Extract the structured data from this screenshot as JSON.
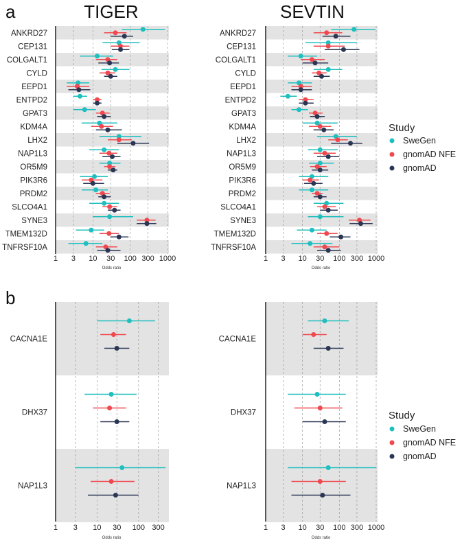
{
  "chart_data": [
    {
      "type": "forest",
      "panel_label": "a",
      "title": "TIGER",
      "xlabel": "Odds ratio",
      "xscale": "log",
      "xticks": [
        1,
        3,
        10,
        30,
        100,
        300,
        1000
      ],
      "xlim": [
        1,
        1000
      ],
      "categories": [
        "ANKRD27",
        "CEP131",
        "COLGALT1",
        "CYLD",
        "EEPD1",
        "ENTPD2",
        "GPAT3",
        "KDM4A",
        "LHX2",
        "NAP1L3",
        "OR5M9",
        "PIK3R6",
        "PRDM2",
        "SLCO4A1",
        "SYNE3",
        "TMEM132D",
        "TNFRSF10A"
      ],
      "series": [
        {
          "name": "SweGen",
          "color": "#1fbfbf",
          "values": [
            220,
            50,
            13,
            40,
            4,
            4.5,
            6,
            15,
            50,
            20,
            28,
            11,
            12,
            20,
            28,
            9,
            6.5
          ],
          "lower": [
            60,
            18,
            4.5,
            17,
            2,
            3,
            3,
            5,
            15,
            8,
            15,
            4.5,
            5,
            8,
            10,
            3.5,
            2.2
          ],
          "upper": [
            850,
            180,
            35,
            95,
            8,
            7,
            12,
            45,
            200,
            50,
            55,
            25,
            25,
            50,
            120,
            20,
            18
          ]
        },
        {
          "name": "gnomAD NFE",
          "color": "#f0484e",
          "values": [
            40,
            55,
            25,
            25,
            3.8,
            13,
            18,
            17,
            50,
            27,
            28,
            9,
            18,
            28,
            280,
            27,
            22
          ],
          "lower": [
            20,
            30,
            12,
            15,
            2,
            10,
            12,
            9,
            25,
            15,
            20,
            5,
            12,
            18,
            150,
            15,
            12
          ],
          "upper": [
            80,
            95,
            45,
            40,
            8,
            17,
            28,
            35,
            110,
            45,
            40,
            18,
            28,
            45,
            480,
            50,
            45
          ]
        },
        {
          "name": "gnomAD",
          "color": "#2b3654",
          "values": [
            70,
            55,
            28,
            30,
            4.2,
            13,
            20,
            25,
            120,
            33,
            35,
            10,
            20,
            38,
            280,
            50,
            25
          ],
          "lower": [
            30,
            32,
            14,
            20,
            2.2,
            10,
            13,
            12,
            45,
            18,
            25,
            5.5,
            14,
            25,
            150,
            30,
            13
          ],
          "upper": [
            120,
            95,
            50,
            45,
            8.5,
            17,
            30,
            60,
            320,
            55,
            45,
            20,
            30,
            55,
            500,
            90,
            55
          ]
        }
      ]
    },
    {
      "type": "forest",
      "panel_label": "",
      "title": "SEVTIN",
      "xlabel": "Odds ratio",
      "xscale": "log",
      "xticks": [
        1,
        3,
        10,
        30,
        100,
        300,
        1000
      ],
      "xlim": [
        1,
        1000
      ],
      "categories": [
        "ANKRD27",
        "CEP131",
        "COLGALT1",
        "CYLD",
        "EEPD1",
        "ENTPD2",
        "GPAT3",
        "KDM4A",
        "LHX2",
        "NAP1L3",
        "OR5M9",
        "PIK3R6",
        "PRDM2",
        "SLCO4A1",
        "SYNE3",
        "TMEM132D",
        "TNFRSF10A"
      ],
      "series": [
        {
          "name": "SweGen",
          "color": "#1fbfbf",
          "values": [
            250,
            50,
            9,
            50,
            8,
            4,
            8,
            25,
            80,
            30,
            30,
            18,
            18,
            45,
            30,
            18,
            16
          ],
          "lower": [
            60,
            12,
            4,
            20,
            4,
            2.5,
            5,
            10,
            25,
            14,
            15,
            8,
            8,
            20,
            14,
            7,
            5
          ],
          "upper": [
            950,
            300,
            25,
            120,
            18,
            7,
            14,
            90,
            300,
            90,
            70,
            50,
            50,
            130,
            130,
            45,
            65
          ]
        },
        {
          "name": "gnomAD NFE",
          "color": "#f0484e",
          "values": [
            45,
            50,
            18,
            28,
            9,
            12,
            22,
            30,
            90,
            40,
            25,
            16,
            25,
            40,
            350,
            45,
            40
          ],
          "lower": [
            20,
            20,
            9,
            18,
            5,
            8,
            15,
            15,
            50,
            20,
            16,
            10,
            18,
            25,
            180,
            25,
            20
          ],
          "upper": [
            120,
            140,
            40,
            45,
            18,
            20,
            35,
            60,
            170,
            80,
            45,
            28,
            35,
            80,
            700,
            90,
            100
          ]
        },
        {
          "name": "gnomAD",
          "color": "#2b3654",
          "values": [
            80,
            130,
            22,
            33,
            9,
            12,
            25,
            38,
            200,
            50,
            30,
            20,
            30,
            50,
            380,
            110,
            50
          ],
          "lower": [
            35,
            40,
            10,
            20,
            5,
            8,
            16,
            20,
            60,
            25,
            18,
            11,
            20,
            30,
            190,
            55,
            25
          ],
          "upper": [
            200,
            350,
            50,
            55,
            18,
            20,
            40,
            70,
            420,
            100,
            50,
            35,
            45,
            90,
            800,
            200,
            110
          ]
        }
      ]
    },
    {
      "type": "forest",
      "panel_label": "b",
      "title": "",
      "xlabel": "Odds ratio",
      "xscale": "log",
      "xticks": [
        1,
        3,
        10,
        30,
        100,
        300
      ],
      "xlim": [
        1,
        500
      ],
      "categories": [
        "CACNA1E",
        "DHX37",
        "NAP1L3"
      ],
      "series": [
        {
          "name": "SweGen",
          "color": "#1fbfbf",
          "values": [
            60,
            22,
            40
          ],
          "lower": [
            10,
            5,
            3
          ],
          "upper": [
            250,
            90,
            450
          ]
        },
        {
          "name": "gnomAD NFE",
          "color": "#f0484e",
          "values": [
            25,
            20,
            22
          ],
          "lower": [
            12,
            8,
            7
          ],
          "upper": [
            50,
            50,
            80
          ]
        },
        {
          "name": "gnomAD",
          "color": "#2b3654",
          "values": [
            30,
            30,
            28
          ],
          "lower": [
            15,
            12,
            6
          ],
          "upper": [
            60,
            60,
            100
          ]
        }
      ]
    },
    {
      "type": "forest",
      "panel_label": "",
      "title": "",
      "xlabel": "Odds ratio",
      "xscale": "log",
      "xticks": [
        1,
        3,
        10,
        30,
        100,
        300,
        1000
      ],
      "xlim": [
        1,
        1000
      ],
      "categories": [
        "CACNA1E",
        "DHX37",
        "NAP1L3"
      ],
      "series": [
        {
          "name": "SweGen",
          "color": "#1fbfbf",
          "values": [
            40,
            25,
            50
          ],
          "lower": [
            14,
            4,
            4
          ],
          "upper": [
            180,
            150,
            1000
          ]
        },
        {
          "name": "gnomAD NFE",
          "color": "#f0484e",
          "values": [
            20,
            30,
            30
          ],
          "lower": [
            10,
            6,
            5
          ],
          "upper": [
            45,
            120,
            150
          ]
        },
        {
          "name": "gnomAD",
          "color": "#2b3654",
          "values": [
            50,
            40,
            35
          ],
          "lower": [
            20,
            10,
            5
          ],
          "upper": [
            130,
            150,
            200
          ]
        }
      ]
    }
  ],
  "legend_title": "Study",
  "legend_entries": [
    "SweGen",
    "gnomAD NFE",
    "gnomAD"
  ]
}
